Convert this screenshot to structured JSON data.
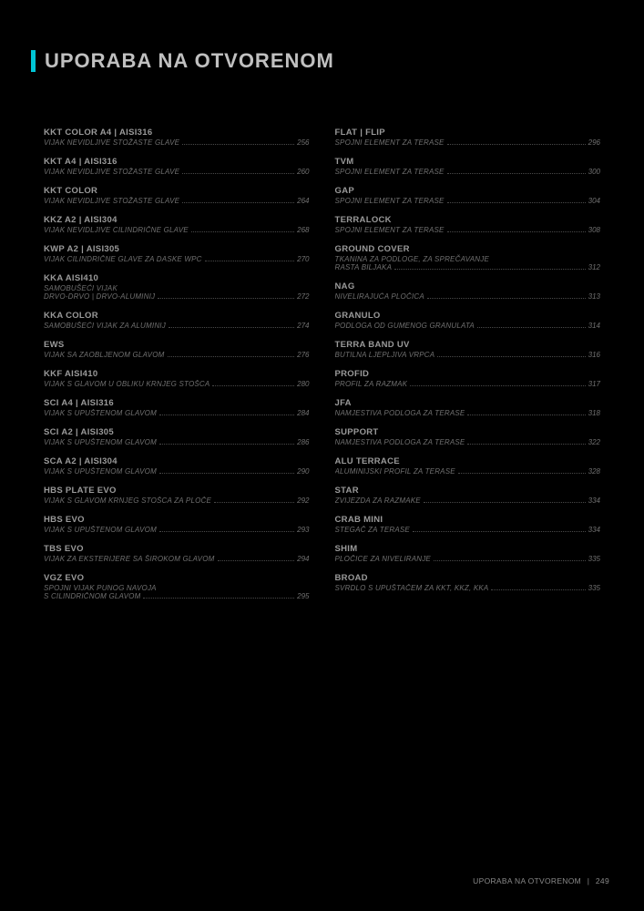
{
  "title": "UPORABA NA OTVORENOM",
  "accent_color": "#00c5d5",
  "background_color": "#000000",
  "text_color": "#808080",
  "left": [
    {
      "t": "KKT COLOR A4 | AISI316",
      "d": "VIJAK NEVIDLJIVE STOŽASTE GLAVE",
      "p": "256"
    },
    {
      "t": "KKT A4 | AISI316",
      "d": "VIJAK NEVIDLJIVE STOŽASTE GLAVE",
      "p": "260"
    },
    {
      "t": "KKT COLOR",
      "d": "VIJAK NEVIDLJIVE STOŽASTE GLAVE",
      "p": "264"
    },
    {
      "t": "KKZ A2 | AISI304",
      "d": "VIJAK NEVIDLJIVE CILINDRIČNE GLAVE",
      "p": "268"
    },
    {
      "t": "KWP A2 | AISI305",
      "d": "VIJAK CILINDRIČNE GLAVE ZA DASKE WPC",
      "p": "270"
    },
    {
      "t": "KKA AISI410",
      "d1": "SAMOBUŠEĆI VIJAK",
      "d": "DRVO-DRVO | DRVO-ALUMINIJ",
      "p": "272"
    },
    {
      "t": "KKA COLOR",
      "d": "SAMOBUŠEĆI VIJAK ZA ALUMINIJ",
      "p": "274"
    },
    {
      "t": "EWS",
      "d": "VIJAK SA ZAOBLJENOM GLAVOM",
      "p": "276"
    },
    {
      "t": "KKF AISI410",
      "d": "VIJAK S GLAVOM U OBLIKU KRNJEG STOŠCA",
      "p": "280"
    },
    {
      "t": "SCI A4 | AISI316",
      "d": "VIJAK S UPUŠTENOM GLAVOM",
      "p": "284"
    },
    {
      "t": "SCI A2 | AISI305",
      "d": "VIJAK S UPUŠTENOM GLAVOM",
      "p": "286"
    },
    {
      "t": "SCA A2 | AISI304",
      "d": "VIJAK S UPUŠTENOM GLAVOM",
      "p": "290"
    },
    {
      "t": "HBS PLATE EVO",
      "d": "VIJAK S GLAVOM KRNJEG STOŠCA ZA PLOČE",
      "p": "292"
    },
    {
      "t": "HBS EVO",
      "d": "VIJAK S UPUŠTENOM GLAVOM",
      "p": "293"
    },
    {
      "t": "TBS EVO",
      "d": "VIJAK ZA EKSTERIJERE SA ŠIROKOM GLAVOM",
      "p": "294"
    },
    {
      "t": "VGZ EVO",
      "d1": "SPOJNI VIJAK PUNOG NAVOJA",
      "d": "S CILINDRIČNOM GLAVOM",
      "p": "295"
    }
  ],
  "right": [
    {
      "t": "FLAT | FLIP",
      "d": "SPOJNI ELEMENT ZA TERASE",
      "p": "296"
    },
    {
      "t": "TVM",
      "d": "SPOJNI ELEMENT ZA TERASE",
      "p": "300"
    },
    {
      "t": "GAP",
      "d": "SPOJNI ELEMENT ZA TERASE",
      "p": "304"
    },
    {
      "t": "TERRALOCK",
      "d": "SPOJNI ELEMENT ZA TERASE",
      "p": "308"
    },
    {
      "t": "GROUND COVER",
      "d1": "TKANINA ZA PODLOGE, ZA SPREČAVANJE",
      "d": "RASTA BILJAKA",
      "p": "312"
    },
    {
      "t": "NAG",
      "d": "NIVELIRAJUĆA PLOČICA",
      "p": "313"
    },
    {
      "t": "GRANULO",
      "d": "PODLOGA OD GUMENOG GRANULATA",
      "p": "314"
    },
    {
      "t": "TERRA BAND UV",
      "d": "BUTILNA LJEPLJIVA VRPCA",
      "p": "316"
    },
    {
      "t": "PROFID",
      "d": "PROFIL ZA RAZMAK",
      "p": "317"
    },
    {
      "t": "JFA",
      "d": "NAMJESTIVA PODLOGA ZA TERASE",
      "p": "318"
    },
    {
      "t": "SUPPORT",
      "d": "NAMJESTIVA PODLOGA ZA TERASE",
      "p": "322"
    },
    {
      "t": "ALU TERRACE",
      "d": "ALUMINIJSKI PROFIL ZA TERASE",
      "p": "328"
    },
    {
      "t": "STAR",
      "d": "ZVIJEZDA ZA RAZMAKE",
      "p": "334"
    },
    {
      "t": "CRAB MINI",
      "d": "STEGAČ ZA TERASE",
      "p": "334"
    },
    {
      "t": "SHIM",
      "d": "PLOČICE ZA NIVELIRANJE",
      "p": "335"
    },
    {
      "t": "BROAD",
      "d": "SVRDLO S UPUŠTAČEM ZA KKT, KKZ, KKA",
      "p": "335"
    }
  ],
  "footer": {
    "text": "UPORABA NA OTVORENOM",
    "page": "249"
  }
}
